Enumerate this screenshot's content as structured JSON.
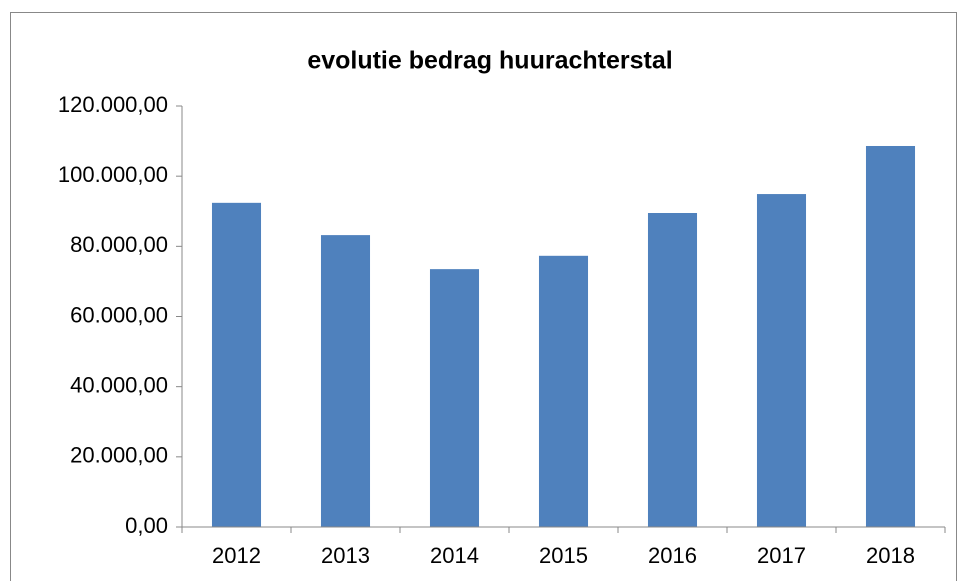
{
  "chart_data": {
    "type": "bar",
    "title": "evolutie bedrag huurachterstal",
    "categories": [
      "2012",
      "2013",
      "2014",
      "2015",
      "2016",
      "2017",
      "2018"
    ],
    "values": [
      92400,
      83200,
      73500,
      77300,
      89500,
      94900,
      108600
    ],
    "color": "#4f81bd",
    "ylim": [
      0,
      120000
    ],
    "yticks": [
      {
        "value": 0,
        "label": "0,00"
      },
      {
        "value": 20000,
        "label": "20.000,00"
      },
      {
        "value": 40000,
        "label": "40.000,00"
      },
      {
        "value": 60000,
        "label": "60.000,00"
      },
      {
        "value": 80000,
        "label": "80.000,00"
      },
      {
        "value": 100000,
        "label": "100.000,00"
      },
      {
        "value": 120000,
        "label": "120.000,00"
      }
    ],
    "grid": false
  }
}
